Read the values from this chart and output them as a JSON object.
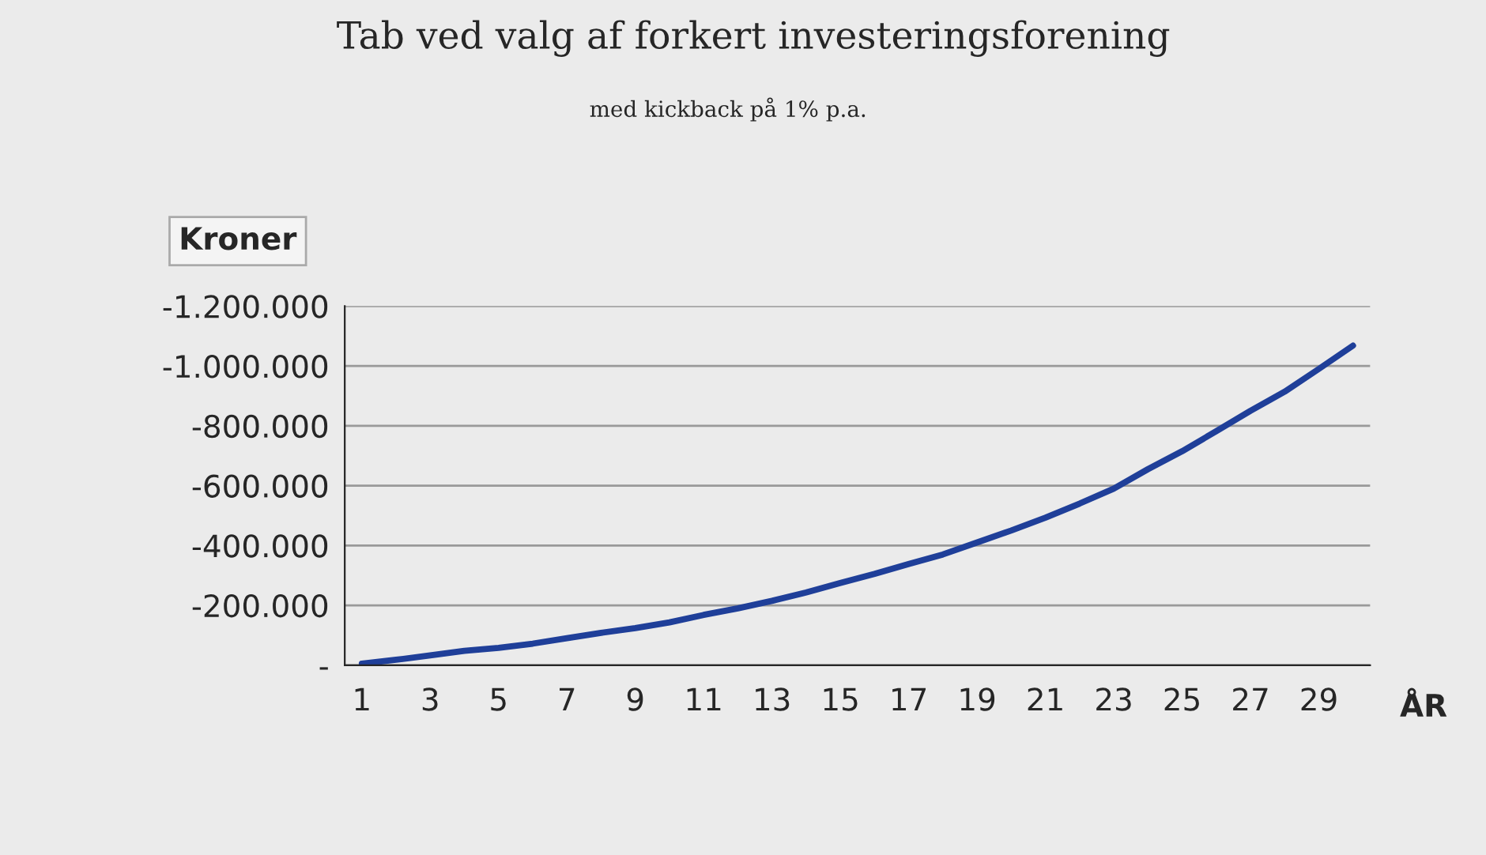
{
  "chart_data": {
    "type": "line",
    "title": "Tab ved valg af forkert investeringsforening",
    "subtitle": "med kickback på 1% p.a.",
    "ylabel": "Kroner",
    "xlabel": "ÅR",
    "categories": [
      "1",
      null,
      "3",
      null,
      "5",
      null,
      "7",
      null,
      "9",
      null,
      "11",
      null,
      "13",
      null,
      "15",
      null,
      "17",
      null,
      "19",
      null,
      "21",
      null,
      "23",
      null,
      "25",
      null,
      "27",
      null,
      "29",
      null
    ],
    "series": [
      {
        "color": "#1f3f99",
        "values": [
          -5000,
          -18000,
          -33000,
          -48000,
          -58000,
          -72000,
          -90000,
          -108000,
          -124000,
          -143000,
          -168000,
          -190000,
          -215000,
          -243000,
          -275000,
          -305000,
          -338000,
          -370000,
          -410000,
          -450000,
          -493000,
          -540000,
          -590000,
          -655000,
          -715000,
          -782000,
          -850000,
          -914000,
          -990000,
          -1068000
        ]
      }
    ],
    "ylim": [
      0,
      -1200000
    ],
    "yticks": [
      {
        "value": 0,
        "label": "-"
      },
      {
        "value": -200000,
        "label": "-200.000"
      },
      {
        "value": -400000,
        "label": "-400.000"
      },
      {
        "value": -600000,
        "label": "-600.000"
      },
      {
        "value": -800000,
        "label": "-800.000"
      },
      {
        "value": -1000000,
        "label": "-1.000.000"
      },
      {
        "value": -1200000,
        "label": "-1.200.000"
      }
    ],
    "grid": "y",
    "marker": "none",
    "line_style": "solid",
    "legend": false
  }
}
